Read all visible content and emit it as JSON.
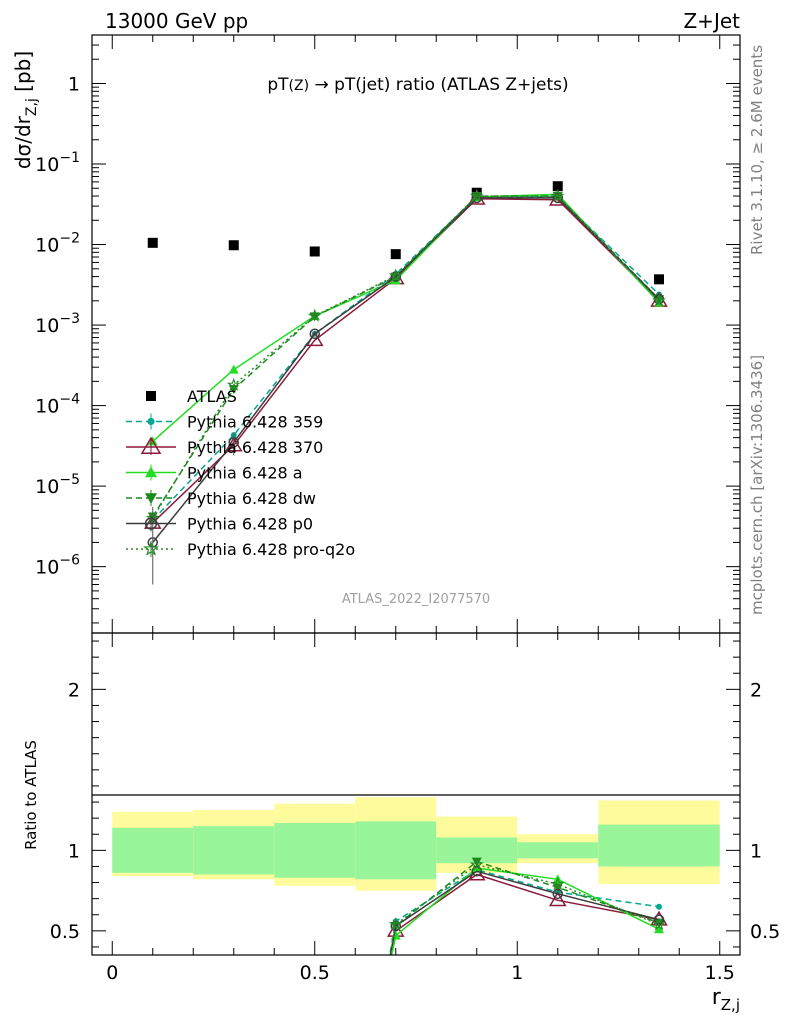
{
  "header": {
    "energy_label": "13000 GeV pp",
    "process_label": "Z+Jet"
  },
  "side_labels": {
    "rivet": "Rivet 3.1.10, ≥ 2.6M events",
    "mcplots": "mcplots.cern.ch [arXiv:1306.3436]"
  },
  "watermark": "ATLAS_2022_I2077570",
  "chart_data": [
    {
      "type": "line",
      "title": "pT(Z) → pT(jet) ratio (ATLAS Z+jets)",
      "title_parts": [
        "pT",
        "(Z)",
        " → pT(jet) ratio (ATLAS Z+jets)"
      ],
      "ylabel_parts": [
        "dσ/dr",
        "Z,j",
        " [pb]"
      ],
      "yscale": "log",
      "xlim": [
        -0.05,
        1.55
      ],
      "ylim": [
        1.5e-07,
        4.0
      ],
      "ytick_labels": [
        {
          "value": 1e-06,
          "base": "10",
          "exp": "−6"
        },
        {
          "value": 1e-05,
          "base": "10",
          "exp": "−5"
        },
        {
          "value": 0.0001,
          "base": "10",
          "exp": "−4"
        },
        {
          "value": 0.001,
          "base": "10",
          "exp": "−3"
        },
        {
          "value": 0.01,
          "base": "10",
          "exp": "−2"
        },
        {
          "value": 0.1,
          "base": "10",
          "exp": "−1"
        },
        {
          "value": 1,
          "base": "1",
          "exp": ""
        }
      ],
      "legend_position": "center-left",
      "series": [
        {
          "name": "ATLAS",
          "color": "#000000",
          "marker": "square",
          "style": "none",
          "x": [
            0.1,
            0.3,
            0.5,
            0.7,
            0.9,
            1.1,
            1.35
          ],
          "y": [
            0.0105,
            0.0098,
            0.0082,
            0.0076,
            0.044,
            0.053,
            0.0037
          ]
        },
        {
          "name": "Pythia 6.428 359",
          "color": "#00a88f",
          "marker": "circle-small",
          "style": "dashed",
          "x": [
            0.1,
            0.3,
            0.5,
            0.7,
            0.9,
            1.1,
            1.35
          ],
          "y": [
            3.8e-06,
            4.3e-05,
            0.00078,
            0.0043,
            0.039,
            0.039,
            0.0024
          ]
        },
        {
          "name": "Pythia 6.428 370",
          "color": "#8b1a3a",
          "marker": "triangle-open",
          "style": "solid",
          "x": [
            0.1,
            0.3,
            0.5,
            0.7,
            0.9,
            1.1,
            1.35
          ],
          "y": [
            3.5e-06,
            3.2e-05,
            0.00065,
            0.0038,
            0.037,
            0.036,
            0.002
          ]
        },
        {
          "name": "Pythia 6.428 a",
          "color": "#22dd22",
          "marker": "triangle",
          "style": "solid",
          "x": [
            0.1,
            0.3,
            0.5,
            0.7,
            0.9,
            1.1,
            1.35
          ],
          "y": [
            3.6e-05,
            0.00028,
            0.0013,
            0.0036,
            0.039,
            0.042,
            0.0019
          ]
        },
        {
          "name": "Pythia 6.428 dw",
          "color": "#1a8a1a",
          "marker": "triangle-down",
          "style": "dashed",
          "x": [
            0.1,
            0.3,
            0.5,
            0.7,
            0.9,
            1.1,
            1.35
          ],
          "y": [
            4.2e-06,
            0.00016,
            0.00128,
            0.004,
            0.04,
            0.04,
            0.0021
          ]
        },
        {
          "name": "Pythia 6.428 p0",
          "color": "#3c3c3c",
          "marker": "circle-open",
          "style": "solid",
          "x": [
            0.1,
            0.3,
            0.5,
            0.7,
            0.9,
            1.1,
            1.35
          ],
          "y": [
            2e-06,
            3.5e-05,
            0.00078,
            0.004,
            0.038,
            0.038,
            0.0021
          ]
        },
        {
          "name": "Pythia 6.428 pro-q2o",
          "color": "#2a8a2a",
          "marker": "star-open",
          "style": "dotted",
          "x": [
            0.1,
            0.3,
            0.5,
            0.7,
            0.9,
            1.1,
            1.35
          ],
          "y": [
            4e-06,
            0.00018,
            0.0013,
            0.0041,
            0.04,
            0.04,
            0.002
          ]
        }
      ]
    },
    {
      "type": "line",
      "ylabel": "Ratio to ATLAS",
      "xlabel_parts": [
        "r",
        "Z,j"
      ],
      "xlim": [
        -0.05,
        1.55
      ],
      "ylim": [
        0.35,
        2.35
      ],
      "xticks": [
        0,
        0.5,
        1,
        1.5
      ],
      "xtick_labels": [
        "0",
        "0.5",
        "1",
        "1.5"
      ],
      "yticks": [
        0.5,
        1,
        2
      ],
      "ytick_labels": [
        "0.5",
        "1",
        "2"
      ],
      "bands": {
        "bins": [
          [
            0.0,
            0.2
          ],
          [
            0.2,
            0.4
          ],
          [
            0.4,
            0.6
          ],
          [
            0.6,
            0.8
          ],
          [
            0.8,
            1.0
          ],
          [
            1.0,
            1.2
          ],
          [
            1.2,
            1.5
          ]
        ],
        "inner_lo": [
          0.86,
          0.85,
          0.83,
          0.82,
          0.92,
          0.95,
          0.9
        ],
        "inner_hi": [
          1.14,
          1.15,
          1.17,
          1.18,
          1.08,
          1.05,
          1.16
        ],
        "outer_lo": [
          0.84,
          0.82,
          0.78,
          0.75,
          0.86,
          0.92,
          0.79
        ],
        "outer_hi": [
          1.24,
          1.25,
          1.29,
          1.33,
          1.21,
          1.1,
          1.31
        ],
        "inner_color": "#99f599",
        "outer_color": "#fdfb9c"
      },
      "series": [
        {
          "name": "Pythia 6.428 359",
          "color": "#00a88f",
          "marker": "circle-small",
          "style": "dashed",
          "x": [
            0.66,
            0.7,
            0.9,
            1.1,
            1.35
          ],
          "y": [
            0.0,
            0.56,
            0.88,
            0.74,
            0.65
          ]
        },
        {
          "name": "Pythia 6.428 370",
          "color": "#8b1a3a",
          "marker": "triangle-open",
          "style": "solid",
          "x": [
            0.66,
            0.7,
            0.9,
            1.1,
            1.35
          ],
          "y": [
            0.0,
            0.5,
            0.85,
            0.69,
            0.57
          ]
        },
        {
          "name": "Pythia 6.428 a",
          "color": "#22dd22",
          "marker": "triangle",
          "style": "solid",
          "x": [
            0.66,
            0.7,
            0.9,
            1.1,
            1.35
          ],
          "y": [
            0.0,
            0.47,
            0.89,
            0.82,
            0.51
          ]
        },
        {
          "name": "Pythia 6.428 dw",
          "color": "#1a8a1a",
          "marker": "triangle-down",
          "style": "dashed",
          "x": [
            0.66,
            0.7,
            0.9,
            1.1,
            1.35
          ],
          "y": [
            0.0,
            0.53,
            0.93,
            0.77,
            0.55
          ]
        },
        {
          "name": "Pythia 6.428 p0",
          "color": "#3c3c3c",
          "marker": "circle-open",
          "style": "solid",
          "x": [
            0.66,
            0.7,
            0.9,
            1.1,
            1.35
          ],
          "y": [
            0.0,
            0.53,
            0.87,
            0.73,
            0.57
          ]
        },
        {
          "name": "Pythia 6.428 pro-q2o",
          "color": "#2a8a2a",
          "marker": "star-open",
          "style": "dotted",
          "x": [
            0.66,
            0.7,
            0.9,
            1.1,
            1.35
          ],
          "y": [
            0.0,
            0.54,
            0.91,
            0.79,
            0.54
          ]
        }
      ]
    }
  ]
}
